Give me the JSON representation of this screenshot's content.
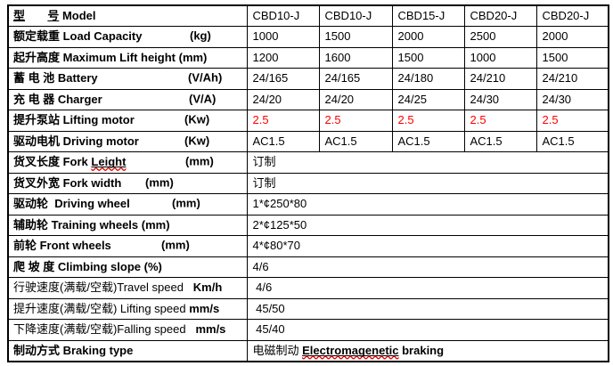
{
  "colors": {
    "highlight_red": "#ff0000",
    "spellcheck_red": "#e00000",
    "border_black": "#000000"
  },
  "table": {
    "rows": [
      {
        "merged": false,
        "label": [
          {
            "t": "型",
            "b": true,
            "u": true
          },
          {
            "t": "       ",
            "b": true
          },
          {
            "t": "号",
            "b": true,
            "u": true
          },
          {
            "t": " Model",
            "b": true
          }
        ],
        "cells": [
          [
            {
              "t": "CBD10-J"
            }
          ],
          [
            {
              "t": "CBD10-J"
            }
          ],
          [
            {
              "t": "CBD15-J"
            }
          ],
          [
            {
              "t": "CBD20-J"
            }
          ],
          [
            {
              "t": "CBD20-J"
            }
          ]
        ]
      },
      {
        "merged": false,
        "label": [
          {
            "t": "额定载重 Load Capacity",
            "b": true
          },
          {
            "t": "(kg)",
            "b": true,
            "tab": 203
          }
        ],
        "cells": [
          [
            {
              "t": "1000"
            }
          ],
          [
            {
              "t": "1500"
            }
          ],
          [
            {
              "t": "2000"
            }
          ],
          [
            {
              "t": "2500"
            }
          ],
          [
            {
              "t": "2000"
            }
          ]
        ]
      },
      {
        "merged": false,
        "label": [
          {
            "t": "起升高度 Maximum Lift height (mm)",
            "b": true
          }
        ],
        "cells": [
          [
            {
              "t": "1200"
            }
          ],
          [
            {
              "t": "1600"
            }
          ],
          [
            {
              "t": "1500"
            }
          ],
          [
            {
              "t": "1000"
            }
          ],
          [
            {
              "t": "1500"
            }
          ]
        ]
      },
      {
        "merged": false,
        "label": [
          {
            "t": "蓄 电 池 Battery",
            "b": true
          },
          {
            "t": "(V/Ah)",
            "b": true,
            "tab": 201
          }
        ],
        "cells": [
          [
            {
              "t": "24/165"
            }
          ],
          [
            {
              "t": "24/165"
            }
          ],
          [
            {
              "t": "24/180"
            }
          ],
          [
            {
              "t": "24/210"
            }
          ],
          [
            {
              "t": "24/210"
            }
          ]
        ]
      },
      {
        "merged": false,
        "label": [
          {
            "t": "充 电 器 Charger",
            "b": true
          },
          {
            "t": "(V/A)",
            "b": true,
            "tab": 202
          }
        ],
        "cells": [
          [
            {
              "t": "24/20"
            }
          ],
          [
            {
              "t": "24/20"
            }
          ],
          [
            {
              "t": "24/25"
            }
          ],
          [
            {
              "t": "24/30"
            }
          ],
          [
            {
              "t": "24/30"
            }
          ]
        ]
      },
      {
        "merged": false,
        "label": [
          {
            "t": "提升泵站 Lifting motor",
            "b": true
          },
          {
            "t": "(Kw)",
            "b": true,
            "tab": 197
          }
        ],
        "cells": [
          [
            {
              "t": "2.5",
              "r": true
            }
          ],
          [
            {
              "t": "2.5",
              "r": true
            }
          ],
          [
            {
              "t": "2.5",
              "r": true
            }
          ],
          [
            {
              "t": "2.5",
              "r": true
            }
          ],
          [
            {
              "t": "2.5",
              "r": true
            }
          ]
        ]
      },
      {
        "merged": false,
        "label": [
          {
            "t": "驱动电机 Driving motor",
            "b": true
          },
          {
            "t": "(Kw)",
            "b": true,
            "tab": 197
          }
        ],
        "cells": [
          [
            {
              "t": "AC1.5"
            }
          ],
          [
            {
              "t": "AC1.5"
            }
          ],
          [
            {
              "t": "AC1.5"
            }
          ],
          [
            {
              "t": "AC1.5"
            }
          ],
          [
            {
              "t": "AC1.5"
            }
          ]
        ]
      },
      {
        "merged": true,
        "label": [
          {
            "t": "货叉长度 Fork ",
            "b": true
          },
          {
            "t": "Leight",
            "b": true,
            "u": true,
            "w": true
          },
          {
            "t": "(mm)",
            "b": true,
            "tab": 198
          }
        ],
        "cells": [
          [
            {
              "t": "订制"
            }
          ]
        ]
      },
      {
        "merged": true,
        "label": [
          {
            "t": "货叉外宽 Fork width",
            "b": true
          },
          {
            "t": "(mm)",
            "b": true,
            "tab": 153
          }
        ],
        "cells": [
          [
            {
              "t": "订制"
            }
          ]
        ]
      },
      {
        "merged": true,
        "label": [
          {
            "t": "驱动轮  Driving wheel",
            "b": true
          },
          {
            "t": "(mm)",
            "b": true,
            "tab": 183
          }
        ],
        "cells": [
          [
            {
              "t": "1*¢250*80"
            }
          ]
        ]
      },
      {
        "merged": true,
        "label": [
          {
            "t": "辅助轮 Training wheels (mm)",
            "b": true
          }
        ],
        "cells": [
          [
            {
              "t": "2*¢125*50"
            }
          ]
        ]
      },
      {
        "merged": true,
        "label": [
          {
            "t": "前轮 Front wheels",
            "b": true
          },
          {
            "t": "(mm)",
            "b": true,
            "tab": 171
          }
        ],
        "cells": [
          [
            {
              "t": "4*¢80*70"
            }
          ]
        ]
      },
      {
        "merged": true,
        "label": [
          {
            "t": "爬 坡 度 Climbing slope (%)",
            "b": true
          }
        ],
        "cells": [
          [
            {
              "t": "4/6"
            }
          ]
        ]
      },
      {
        "merged": true,
        "label": [
          {
            "t": "行驶速度(满载/空载)Travel speed"
          },
          {
            "t": "   "
          },
          {
            "t": "Km/h",
            "b": true
          }
        ],
        "cells": [
          [
            {
              "t": " 4/6"
            }
          ]
        ]
      },
      {
        "merged": true,
        "label": [
          {
            "t": "提升速度(满载/空载) Lifting speed "
          },
          {
            "t": "mm/s",
            "b": true
          }
        ],
        "cells": [
          [
            {
              "t": " 45/50"
            }
          ]
        ]
      },
      {
        "merged": true,
        "label": [
          {
            "t": "下降速度(满载/空载)Falling speed"
          },
          {
            "t": "   "
          },
          {
            "t": "mm/s",
            "b": true
          }
        ],
        "cells": [
          [
            {
              "t": " 45/40"
            }
          ]
        ]
      },
      {
        "merged": true,
        "label": [
          {
            "t": "制动方式 Braking type",
            "b": true
          }
        ],
        "cells": [
          [
            {
              "t": "电磁制动 "
            },
            {
              "t": "Electromagenetic",
              "b": true,
              "u": true,
              "w": true
            },
            {
              "t": " braking",
              "b": true
            }
          ]
        ]
      }
    ]
  }
}
